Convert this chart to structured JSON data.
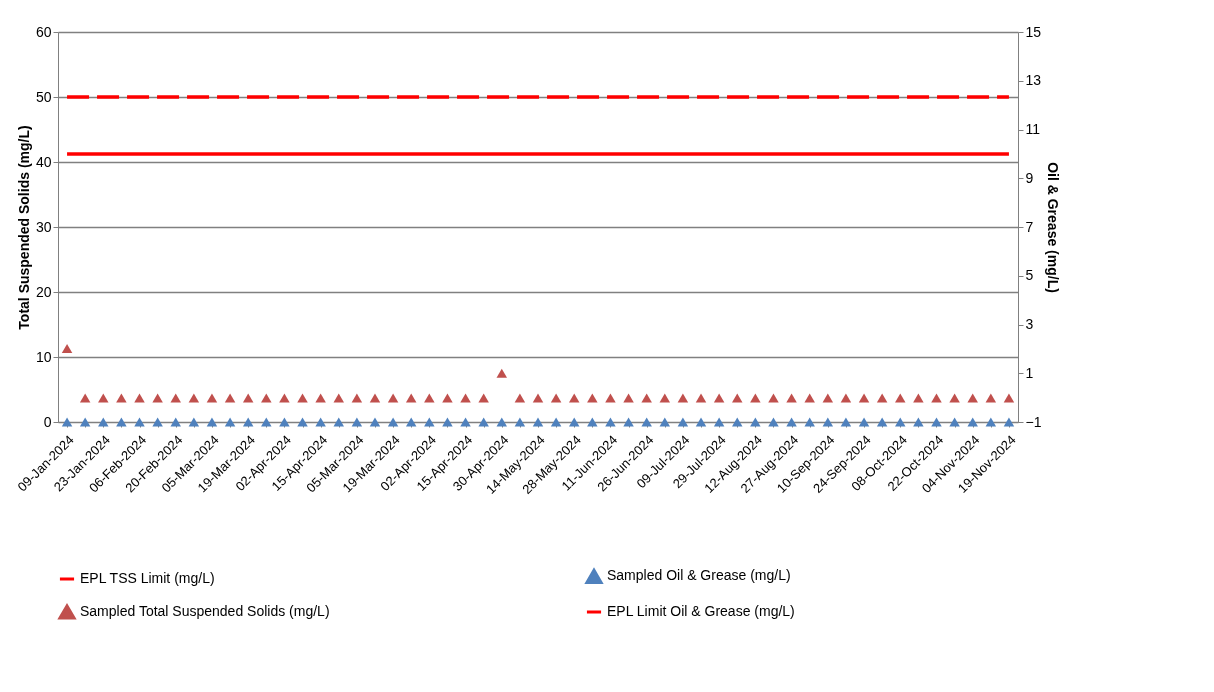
{
  "chart_data": {
    "type": "line",
    "ylabel": "Total Suspended Solids (mg/L)",
    "y2label": "Oil & Grease (mg/L)",
    "categories": [
      "09-Jan-2024",
      null,
      "23-Jan-2024",
      null,
      "06-Feb-2024",
      null,
      "20-Feb-2024",
      null,
      "05-Mar-2024",
      null,
      "19-Mar-2024",
      null,
      "02-Apr-2024",
      null,
      "15-Apr-2024",
      null,
      "05-Mar-2024",
      null,
      "19-Mar-2024",
      null,
      "02-Apr-2024",
      null,
      "15-Apr-2024",
      null,
      "30-Apr-2024",
      null,
      "14-May-2024",
      null,
      "28-May-2024",
      null,
      "11-Jun-2024",
      null,
      "26-Jun-2024",
      null,
      "09-Jul-2024",
      null,
      "29-Jul-2024",
      null,
      "12-Aug-2024",
      null,
      "27-Aug-2024",
      null,
      "10-Sep-2024",
      null,
      "24-Sep-2024",
      null,
      "08-Oct-2024",
      null,
      "22-Oct-2024",
      null,
      "04-Nov-2024",
      null,
      "19-Nov-2024"
    ],
    "ylim": [
      0,
      60
    ],
    "yticks": [
      0,
      10,
      20,
      30,
      40,
      50,
      60
    ],
    "y2lim": [
      -1,
      15
    ],
    "y2ticks": [
      -1,
      1,
      3,
      5,
      7,
      9,
      11,
      13,
      15
    ],
    "grid": "y",
    "legend": "bottom",
    "series": [
      {
        "name": "EPL TSS Limit (mg/L)",
        "line_style": "dashed",
        "marker": "none",
        "color": "#ff0000",
        "values": [
          50,
          50,
          50,
          50,
          50,
          50,
          50,
          50,
          50,
          50,
          50,
          50,
          50,
          50,
          50,
          50,
          50,
          50,
          50,
          50,
          50,
          50,
          50,
          50,
          50,
          50,
          50,
          50,
          50,
          50,
          50,
          50,
          50,
          50,
          50,
          50,
          50,
          50,
          50,
          50,
          50,
          50,
          50,
          50,
          50,
          50,
          50,
          50,
          50,
          50,
          50,
          50,
          50
        ]
      },
      {
        "name": "Sampled Oil & Grease (mg/L)",
        "type": "scatter",
        "marker": "triangle",
        "axis": "y2",
        "color": "#4f81bd",
        "values": [
          -1,
          -1,
          -1,
          -1,
          -1,
          -1,
          -1,
          -1,
          -1,
          -1,
          -1,
          -1,
          -1,
          -1,
          -1,
          -1,
          -1,
          -1,
          -1,
          -1,
          -1,
          -1,
          -1,
          -1,
          -1,
          -1,
          -1,
          -1,
          -1,
          -1,
          -1,
          -1,
          -1,
          -1,
          -1,
          -1,
          -1,
          -1,
          -1,
          -1,
          -1,
          -1,
          -1,
          -1,
          -1,
          -1,
          -1,
          -1,
          -1,
          -1,
          -1,
          -1,
          -1
        ]
      },
      {
        "name": "Sampled Total Suspended Solids (mg/L)",
        "type": "scatter",
        "marker": "triangle",
        "color": "#c0504d",
        "values": [
          11.3,
          3.7,
          3.7,
          3.7,
          3.7,
          3.7,
          3.7,
          3.7,
          3.7,
          3.7,
          3.7,
          3.7,
          3.7,
          3.7,
          3.7,
          3.7,
          3.7,
          3.7,
          3.7,
          3.7,
          3.7,
          3.7,
          3.7,
          3.7,
          7.5,
          3.7,
          3.7,
          3.7,
          3.7,
          3.7,
          3.7,
          3.7,
          3.7,
          3.7,
          3.7,
          3.7,
          3.7,
          3.7,
          3.7,
          3.7,
          3.7,
          3.7,
          3.7,
          3.7,
          3.7,
          3.7,
          3.7,
          3.7,
          3.7,
          3.7,
          3.7,
          3.7,
          3.7
        ]
      },
      {
        "name": "EPL Limit Oil & Grease (mg/L)",
        "line_style": "solid",
        "marker": "none",
        "axis": "y2",
        "color": "#ff0000",
        "values": [
          10,
          10,
          10,
          10,
          10,
          10,
          10,
          10,
          10,
          10,
          10,
          10,
          10,
          10,
          10,
          10,
          10,
          10,
          10,
          10,
          10,
          10,
          10,
          10,
          10,
          10,
          10,
          10,
          10,
          10,
          10,
          10,
          10,
          10,
          10,
          10,
          10,
          10,
          10,
          10,
          10,
          10,
          10,
          10,
          10,
          10,
          10,
          10,
          10,
          10,
          10,
          10,
          10
        ]
      }
    ]
  }
}
